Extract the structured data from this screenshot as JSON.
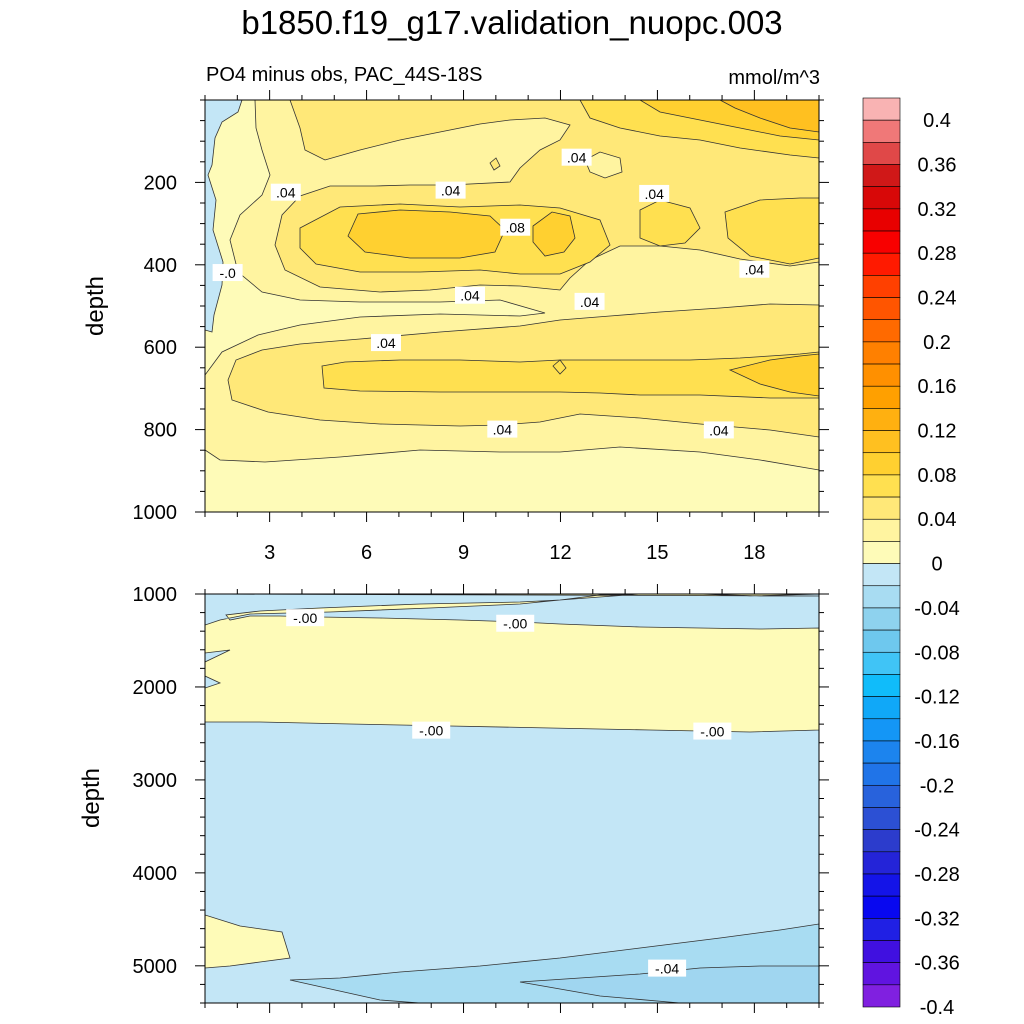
{
  "title": "b1850.f19_g17.validation_nuopc.003",
  "subtitle": "PO4 minus obs, PAC_44S-18S",
  "units": "mmol/m^3",
  "chart_data": [
    {
      "type": "contour",
      "panel": "upper",
      "xlabel": "",
      "ylabel": "depth",
      "xlim": [
        1,
        20
      ],
      "ylim": [
        1000,
        0
      ],
      "x_ticks": [
        3,
        6,
        9,
        12,
        15,
        18
      ],
      "y_ticks": [
        200,
        400,
        600,
        800,
        1000
      ],
      "contour_labels": [
        {
          "text": ".04",
          "x": 12.5,
          "y": 140
        },
        {
          "text": ".04",
          "x": 3.5,
          "y": 225
        },
        {
          "text": ".04",
          "x": 8.6,
          "y": 220
        },
        {
          "text": ".04",
          "x": 14.9,
          "y": 228
        },
        {
          "text": ".08",
          "x": 10.6,
          "y": 310
        },
        {
          "text": "-.0",
          "x": 1.7,
          "y": 420
        },
        {
          "text": ".04",
          "x": 18.0,
          "y": 412
        },
        {
          "text": ".04",
          "x": 9.2,
          "y": 475
        },
        {
          "text": ".04",
          "x": 12.9,
          "y": 490
        },
        {
          "text": ".04",
          "x": 6.6,
          "y": 590
        },
        {
          "text": ".04",
          "x": 10.2,
          "y": 800
        },
        {
          "text": ".04",
          "x": 16.9,
          "y": 802
        }
      ]
    },
    {
      "type": "contour",
      "panel": "lower",
      "xlabel": "",
      "ylabel": "depth",
      "xlim": [
        1,
        20
      ],
      "ylim": [
        5400,
        1000
      ],
      "y_ticks": [
        1000,
        2000,
        3000,
        4000,
        5000
      ],
      "contour_labels": [
        {
          "text": "-.00",
          "x": 4.1,
          "y": 1260
        },
        {
          "text": "-.00",
          "x": 10.6,
          "y": 1320
        },
        {
          "text": "-.00",
          "x": 8.0,
          "y": 2470
        },
        {
          "text": "-.00",
          "x": 16.7,
          "y": 2480
        },
        {
          "text": "-.04",
          "x": 15.3,
          "y": 5030
        }
      ]
    }
  ],
  "colorbar": {
    "labels": [
      "0.4",
      "0.36",
      "0.32",
      "0.28",
      "0.24",
      "0.2",
      "0.16",
      "0.12",
      "0.08",
      "0.04",
      "0",
      "-0.04",
      "-0.08",
      "-0.12",
      "-0.16",
      "-0.2",
      "-0.24",
      "-0.28",
      "-0.32",
      "-0.36",
      "-0.4"
    ],
    "colors": [
      "#f9b3b3",
      "#f07878",
      "#e04848",
      "#d01818",
      "#d80808",
      "#e80000",
      "#f80000",
      "#ff1a00",
      "#ff4000",
      "#ff5500",
      "#ff6a00",
      "#ff8000",
      "#ff9000",
      "#ffa000",
      "#ffb010",
      "#ffc020",
      "#ffd030",
      "#ffe050",
      "#ffe878",
      "#fff4a0",
      "#fefbb8",
      "#c3e6f6",
      "#a8dcf2",
      "#8ed2ee",
      "#6ec8ee",
      "#40c4f6",
      "#10bcfa",
      "#10a8f8",
      "#1496f6",
      "#1c84ee",
      "#2074e8",
      "#2862dc",
      "#2c50d4",
      "#2c3ccc",
      "#2424d8",
      "#1414e8",
      "#0808f0",
      "#2020e4",
      "#4010e0",
      "#6014e0",
      "#8020e0"
    ]
  }
}
